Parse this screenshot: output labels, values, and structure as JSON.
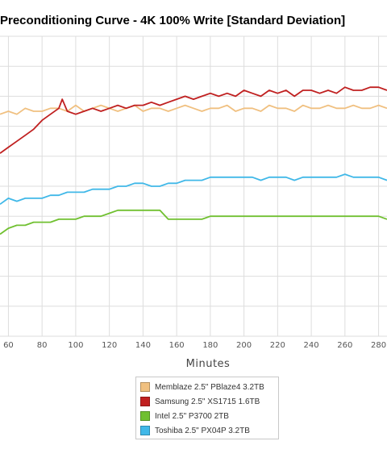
{
  "chart_data": {
    "type": "line",
    "title": "Preconditioning Curve - 4K 100% Write [Standard Deviation]",
    "xlabel": "Minutes",
    "ylabel": "",
    "xlim": [
      55,
      285
    ],
    "ylim": [
      0,
      10
    ],
    "x_ticks": [
      "60",
      "80",
      "100",
      "120",
      "140",
      "160",
      "180",
      "200",
      "220",
      "240",
      "260",
      "280"
    ],
    "grid": true,
    "legend": "bottom",
    "series": [
      {
        "name": "Memblaze 2.5\" PBlaze4 3.2TB",
        "color": "#f0c080",
        "x": [
          55,
          60,
          65,
          70,
          75,
          80,
          85,
          90,
          95,
          100,
          105,
          110,
          115,
          120,
          125,
          130,
          135,
          140,
          145,
          150,
          155,
          160,
          165,
          170,
          175,
          180,
          185,
          190,
          195,
          200,
          205,
          210,
          215,
          220,
          225,
          230,
          235,
          240,
          245,
          250,
          255,
          260,
          265,
          270,
          275,
          280,
          285
        ],
        "y": [
          7.4,
          7.5,
          7.4,
          7.6,
          7.5,
          7.5,
          7.6,
          7.6,
          7.5,
          7.7,
          7.5,
          7.6,
          7.7,
          7.6,
          7.5,
          7.6,
          7.7,
          7.5,
          7.6,
          7.6,
          7.5,
          7.6,
          7.7,
          7.6,
          7.5,
          7.6,
          7.6,
          7.7,
          7.5,
          7.6,
          7.6,
          7.5,
          7.7,
          7.6,
          7.6,
          7.5,
          7.7,
          7.6,
          7.6,
          7.7,
          7.6,
          7.6,
          7.7,
          7.6,
          7.6,
          7.7,
          7.6
        ]
      },
      {
        "name": "Samsung 2.5\" XS1715 1.6TB",
        "color": "#c02020",
        "x": [
          55,
          60,
          65,
          70,
          75,
          80,
          85,
          90,
          92,
          95,
          100,
          105,
          110,
          115,
          120,
          125,
          130,
          135,
          140,
          145,
          150,
          155,
          160,
          165,
          170,
          175,
          180,
          185,
          190,
          195,
          200,
          205,
          210,
          215,
          220,
          225,
          230,
          235,
          240,
          245,
          250,
          255,
          260,
          265,
          270,
          275,
          280,
          285
        ],
        "y": [
          6.1,
          6.3,
          6.5,
          6.7,
          6.9,
          7.2,
          7.4,
          7.6,
          7.9,
          7.5,
          7.4,
          7.5,
          7.6,
          7.5,
          7.6,
          7.7,
          7.6,
          7.7,
          7.7,
          7.8,
          7.7,
          7.8,
          7.9,
          8.0,
          7.9,
          8.0,
          8.1,
          8.0,
          8.1,
          8.0,
          8.2,
          8.1,
          8.0,
          8.2,
          8.1,
          8.2,
          8.0,
          8.2,
          8.2,
          8.1,
          8.2,
          8.1,
          8.3,
          8.2,
          8.2,
          8.3,
          8.3,
          8.2
        ]
      },
      {
        "name": "Intel 2.5\" P3700 2TB",
        "color": "#70c030",
        "x": [
          55,
          60,
          65,
          70,
          75,
          80,
          85,
          90,
          95,
          100,
          105,
          110,
          115,
          120,
          125,
          130,
          135,
          140,
          145,
          150,
          155,
          160,
          165,
          170,
          175,
          180,
          185,
          190,
          195,
          200,
          205,
          210,
          215,
          220,
          225,
          230,
          235,
          240,
          245,
          250,
          255,
          260,
          265,
          270,
          275,
          280,
          285
        ],
        "y": [
          3.4,
          3.6,
          3.7,
          3.7,
          3.8,
          3.8,
          3.8,
          3.9,
          3.9,
          3.9,
          4.0,
          4.0,
          4.0,
          4.1,
          4.2,
          4.2,
          4.2,
          4.2,
          4.2,
          4.2,
          3.9,
          3.9,
          3.9,
          3.9,
          3.9,
          4.0,
          4.0,
          4.0,
          4.0,
          4.0,
          4.0,
          4.0,
          4.0,
          4.0,
          4.0,
          4.0,
          4.0,
          4.0,
          4.0,
          4.0,
          4.0,
          4.0,
          4.0,
          4.0,
          4.0,
          4.0,
          3.9
        ]
      },
      {
        "name": "Toshiba 2.5\" PX04P 3.2TB",
        "color": "#40b8e8",
        "x": [
          55,
          60,
          65,
          70,
          75,
          80,
          85,
          90,
          95,
          100,
          105,
          110,
          115,
          120,
          125,
          130,
          135,
          140,
          145,
          150,
          155,
          160,
          165,
          170,
          175,
          180,
          185,
          190,
          195,
          200,
          205,
          210,
          215,
          220,
          225,
          230,
          235,
          240,
          245,
          250,
          255,
          260,
          265,
          270,
          275,
          280,
          285
        ],
        "y": [
          4.4,
          4.6,
          4.5,
          4.6,
          4.6,
          4.6,
          4.7,
          4.7,
          4.8,
          4.8,
          4.8,
          4.9,
          4.9,
          4.9,
          5.0,
          5.0,
          5.1,
          5.1,
          5.0,
          5.0,
          5.1,
          5.1,
          5.2,
          5.2,
          5.2,
          5.3,
          5.3,
          5.3,
          5.3,
          5.3,
          5.3,
          5.2,
          5.3,
          5.3,
          5.3,
          5.2,
          5.3,
          5.3,
          5.3,
          5.3,
          5.3,
          5.4,
          5.3,
          5.3,
          5.3,
          5.3,
          5.2
        ]
      }
    ]
  }
}
